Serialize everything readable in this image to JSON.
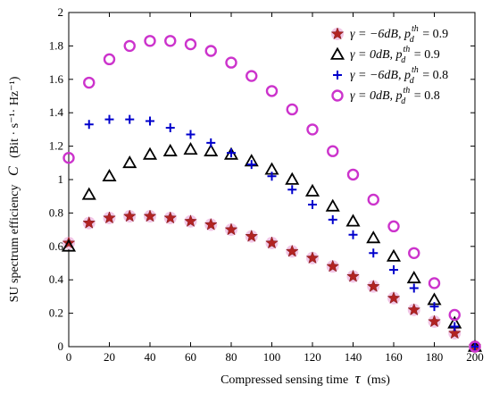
{
  "chart_data": {
    "type": "scatter",
    "title": "",
    "xlabel": "Compressed sensing time",
    "xlabel_symbol": "τ",
    "xlabel_unit": "(ms)",
    "ylabel": "SU spectrum efficiency",
    "ylabel_symbol": "C",
    "ylabel_unit": "(Bit · s⁻¹· Hz⁻¹)",
    "xlim": [
      0,
      200
    ],
    "ylim": [
      0,
      2
    ],
    "xticks": [
      0,
      20,
      40,
      60,
      80,
      100,
      120,
      140,
      160,
      180,
      200
    ],
    "yticks": [
      0,
      0.2,
      0.4,
      0.6,
      0.8,
      1,
      1.2,
      1.4,
      1.6,
      1.8,
      2
    ],
    "grid": false,
    "legend_position": "top-right",
    "series": [
      {
        "name": "γ = −6dB, p_d^th = 0.9",
        "legend_gamma": "γ = −6dB, p",
        "legend_sup": "th",
        "legend_sub": "d",
        "legend_tail": " = 0.9",
        "marker": "star",
        "color": "#b22222",
        "x": [
          0,
          10,
          20,
          30,
          40,
          50,
          60,
          70,
          80,
          90,
          100,
          110,
          120,
          130,
          140,
          150,
          160,
          170,
          180,
          190,
          200
        ],
        "y": [
          0.62,
          0.74,
          0.77,
          0.78,
          0.78,
          0.77,
          0.75,
          0.73,
          0.7,
          0.66,
          0.62,
          0.57,
          0.53,
          0.48,
          0.42,
          0.36,
          0.29,
          0.22,
          0.15,
          0.08,
          0.0
        ]
      },
      {
        "name": "γ = 0dB, p_d^th = 0.9",
        "legend_gamma": "γ = 0dB, p",
        "legend_sup": "th",
        "legend_sub": "d",
        "legend_tail": " = 0.9",
        "marker": "triangle",
        "color": "#000000",
        "x": [
          0,
          10,
          20,
          30,
          40,
          50,
          60,
          70,
          80,
          90,
          100,
          110,
          120,
          130,
          140,
          150,
          160,
          170,
          180,
          190,
          200
        ],
        "y": [
          0.6,
          0.91,
          1.02,
          1.1,
          1.15,
          1.17,
          1.18,
          1.17,
          1.15,
          1.11,
          1.06,
          1.0,
          0.93,
          0.84,
          0.75,
          0.65,
          0.54,
          0.41,
          0.28,
          0.14,
          0.0
        ]
      },
      {
        "name": "γ = −6dB, p_d^th = 0.8",
        "legend_gamma": "γ = −6dB, p",
        "legend_sup": "th",
        "legend_sub": "d",
        "legend_tail": " = 0.8",
        "marker": "plus",
        "color": "#0000cc",
        "x": [
          10,
          20,
          30,
          40,
          50,
          60,
          70,
          80,
          90,
          100,
          110,
          120,
          130,
          140,
          150,
          160,
          170,
          180,
          190,
          200
        ],
        "y": [
          1.33,
          1.36,
          1.36,
          1.35,
          1.31,
          1.27,
          1.22,
          1.16,
          1.09,
          1.02,
          0.94,
          0.85,
          0.76,
          0.67,
          0.56,
          0.46,
          0.35,
          0.24,
          0.12,
          0.0
        ]
      },
      {
        "name": "γ = 0dB, p_d^th = 0.8",
        "legend_gamma": "γ = 0dB, p",
        "legend_sup": "th",
        "legend_sub": "d",
        "legend_tail": " = 0.8",
        "marker": "circle",
        "color": "#cc33cc",
        "x": [
          0,
          10,
          20,
          30,
          40,
          50,
          60,
          70,
          80,
          90,
          100,
          110,
          120,
          130,
          140,
          150,
          160,
          170,
          180,
          190,
          200
        ],
        "y": [
          1.13,
          1.58,
          1.72,
          1.8,
          1.83,
          1.83,
          1.81,
          1.77,
          1.7,
          1.62,
          1.53,
          1.42,
          1.3,
          1.17,
          1.03,
          0.88,
          0.72,
          0.56,
          0.38,
          0.19,
          0.0
        ]
      }
    ]
  }
}
